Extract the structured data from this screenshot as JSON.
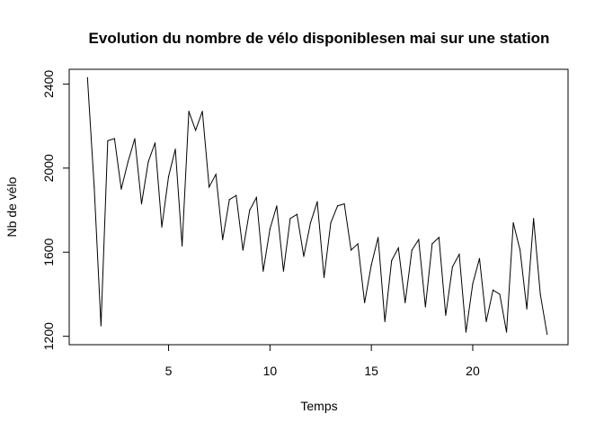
{
  "chart_data": {
    "type": "line",
    "title": "Evolution du nombre de vélo disponiblesen mai sur une station",
    "xlabel": "Temps",
    "ylabel": "Nb de vélo",
    "xlim": [
      0.1,
      24.7
    ],
    "ylim": [
      1160,
      2470
    ],
    "x_ticks": [
      5,
      10,
      15,
      20
    ],
    "y_ticks": [
      1200,
      1600,
      2000,
      2400
    ],
    "grid": false,
    "line_color": "#000000",
    "series": [
      {
        "x": [
          1.0,
          1.333,
          1.667,
          2.0,
          2.333,
          2.667,
          3.0,
          3.333,
          3.667,
          4.0,
          4.333,
          4.667,
          5.0,
          5.333,
          5.667,
          6.0,
          6.333,
          6.667,
          7.0,
          7.333,
          7.667,
          8.0,
          8.333,
          8.667,
          9.0,
          9.333,
          9.667,
          10.0,
          10.333,
          10.667,
          11.0,
          11.333,
          11.667,
          12.0,
          12.333,
          12.667,
          13.0,
          13.333,
          13.667,
          14.0,
          14.333,
          14.667,
          15.0,
          15.333,
          15.667,
          16.0,
          16.333,
          16.667,
          17.0,
          17.333,
          17.667,
          18.0,
          18.333,
          18.667,
          19.0,
          19.333,
          19.667,
          20.0,
          20.333,
          20.667,
          21.0,
          21.333,
          21.667,
          22.0,
          22.333,
          22.667,
          23.0,
          23.333,
          23.667
        ],
        "y": [
          2430,
          1910,
          1250,
          2130,
          2140,
          1900,
          2030,
          2140,
          1830,
          2030,
          2120,
          1720,
          1960,
          2090,
          1630,
          2270,
          2180,
          2270,
          1910,
          1970,
          1660,
          1850,
          1870,
          1610,
          1800,
          1860,
          1510,
          1710,
          1820,
          1510,
          1760,
          1780,
          1580,
          1740,
          1840,
          1480,
          1740,
          1820,
          1830,
          1610,
          1640,
          1360,
          1540,
          1670,
          1270,
          1560,
          1620,
          1360,
          1610,
          1660,
          1340,
          1640,
          1670,
          1300,
          1530,
          1590,
          1220,
          1450,
          1570,
          1270,
          1420,
          1400,
          1220,
          1740,
          1610,
          1330,
          1760,
          1400,
          1210
        ]
      }
    ]
  }
}
